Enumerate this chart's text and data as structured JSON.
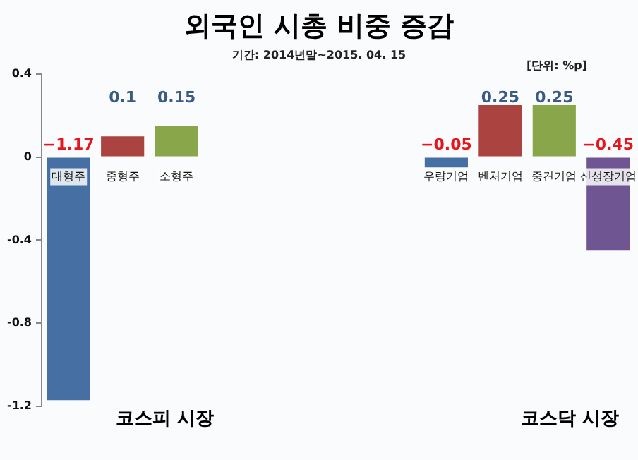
{
  "chart_data": {
    "type": "bar",
    "title": "외국인 시총 비중 증감",
    "subtitle": "기간: 2014년말~2015. 04. 15",
    "annotations": [
      "[단위: %p]",
      "코스피 시장",
      "코스닥 시장"
    ],
    "categories": [
      "대형주",
      "중형주",
      "소형주",
      null,
      null,
      null,
      null,
      "우량기업",
      "벤처기업",
      "중견기업",
      "신성장기업"
    ],
    "values": [
      -1.17,
      0.1,
      0.15,
      null,
      null,
      null,
      null,
      -0.05,
      0.25,
      0.25,
      -0.45
    ],
    "colors": [
      "#4670a3",
      "#ab4441",
      "#8aa64a",
      null,
      null,
      null,
      null,
      "#4670a3",
      "#ab4441",
      "#8aa64a",
      "#6f5592"
    ],
    "value_labels": [
      "−1.17",
      "0.1",
      "0.15",
      null,
      null,
      null,
      null,
      "−0.05",
      "0.25",
      "0.25",
      "−0.45"
    ],
    "ylim": [
      -1.2,
      0.4
    ],
    "yticks": [
      -1.2,
      -0.8,
      -0.4,
      0,
      0.4
    ],
    "grid": false,
    "legend": false
  }
}
